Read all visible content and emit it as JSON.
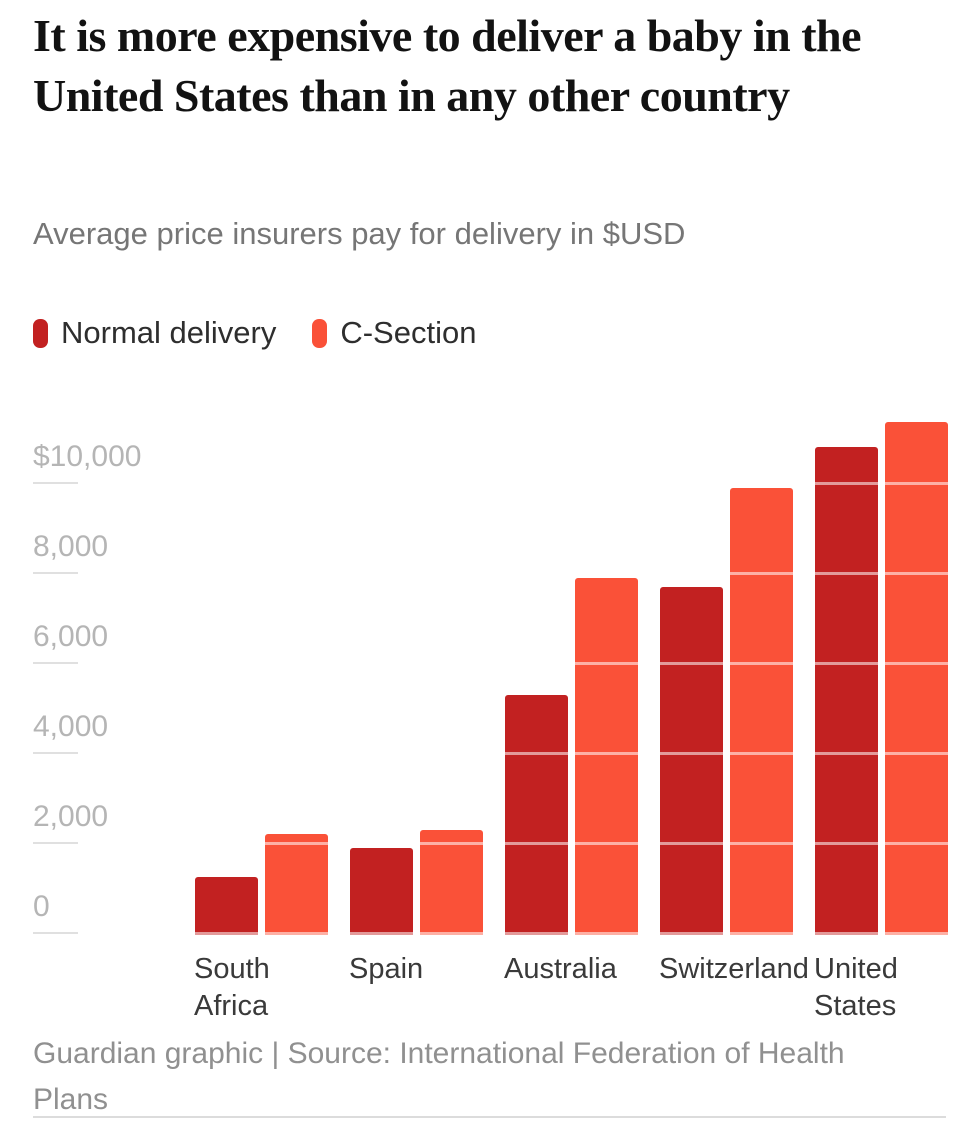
{
  "chart_data": {
    "type": "bar",
    "title": "It is more expensive to deliver a baby in the United States than in any other country",
    "subtitle": "Average price insurers pay for delivery in $USD",
    "categories": [
      "South Africa",
      "Spain",
      "Australia",
      "Switzerland",
      "United States"
    ],
    "series": [
      {
        "name": "Normal delivery",
        "color": "#c22121",
        "values": [
          1250,
          1900,
          5300,
          7700,
          10800
        ]
      },
      {
        "name": "C-Section",
        "color": "#fa5138",
        "values": [
          2200,
          2300,
          7900,
          9900,
          11350
        ]
      }
    ],
    "ylabel": "$USD",
    "yticks": [
      0,
      2000,
      4000,
      6000,
      8000,
      10000
    ],
    "ytick_labels": [
      "0",
      "2,000",
      "4,000",
      "6,000",
      "8,000",
      "$10,000"
    ],
    "ylim": [
      0,
      11500
    ],
    "grid": true,
    "legend_position": "top",
    "source": "Guardian graphic | Source: International Federation of Health Plans"
  },
  "footer": {
    "source": "Guardian graphic | Source: International Federation of Health Plans"
  },
  "colors": {
    "normal_delivery": "#c22121",
    "c_section": "#fa5138",
    "title_text": "#121212",
    "subtitle_text": "#767676",
    "axis_label_text": "#b5b5b5",
    "category_label_text": "#3a3a3a",
    "source_text": "#909090"
  }
}
